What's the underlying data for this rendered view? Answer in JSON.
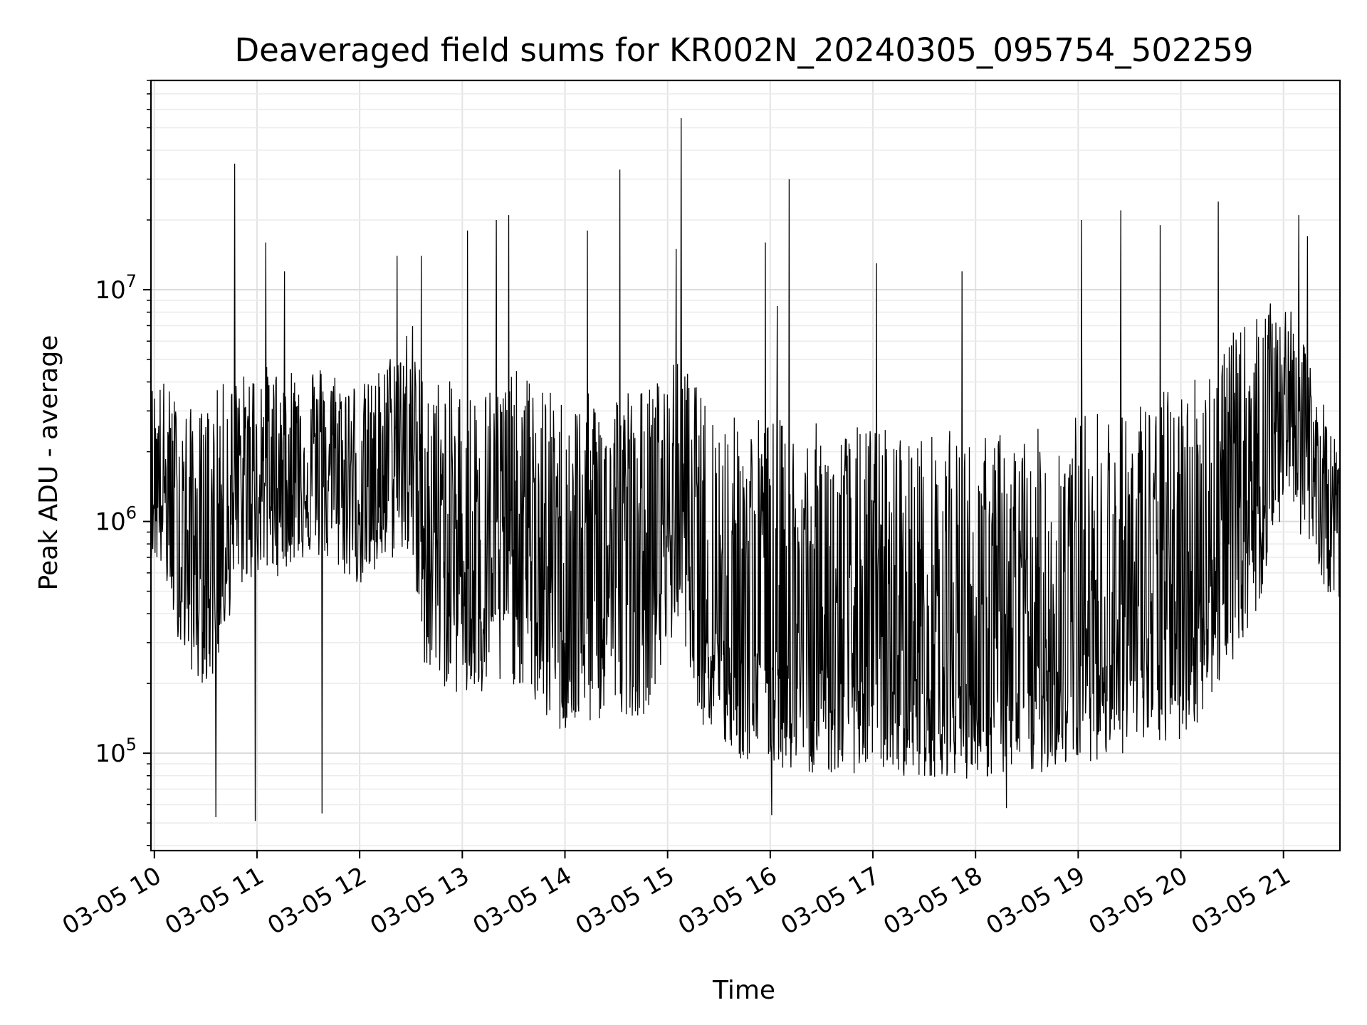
{
  "chart_data": {
    "type": "line",
    "title": "Deaveraged field sums for KR002N_20240305_095754_502259",
    "xlabel": "Time",
    "ylabel": "Peak ADU - average",
    "yscale": "log",
    "ylim": [
      38000,
      80000000
    ],
    "xlim": [
      "2024-03-05 09:58",
      "2024-03-05 21:33"
    ],
    "grid": true,
    "line_color": "#000000",
    "x_ticks": [
      {
        "label": "03-05 10",
        "time": "2024-03-05 10:00"
      },
      {
        "label": "03-05 11",
        "time": "2024-03-05 11:00"
      },
      {
        "label": "03-05 12",
        "time": "2024-03-05 12:00"
      },
      {
        "label": "03-05 13",
        "time": "2024-03-05 13:00"
      },
      {
        "label": "03-05 14",
        "time": "2024-03-05 14:00"
      },
      {
        "label": "03-05 15",
        "time": "2024-03-05 15:00"
      },
      {
        "label": "03-05 16",
        "time": "2024-03-05 16:00"
      },
      {
        "label": "03-05 17",
        "time": "2024-03-05 17:00"
      },
      {
        "label": "03-05 18",
        "time": "2024-03-05 18:00"
      },
      {
        "label": "03-05 19",
        "time": "2024-03-05 19:00"
      },
      {
        "label": "03-05 20",
        "time": "2024-03-05 20:00"
      },
      {
        "label": "03-05 21",
        "time": "2024-03-05 21:00"
      }
    ],
    "y_ticks": [
      {
        "base": "10",
        "exp": "5",
        "value": 100000
      },
      {
        "base": "10",
        "exp": "6",
        "value": 1000000
      },
      {
        "base": "10",
        "exp": "7",
        "value": 10000000
      }
    ],
    "series": [
      {
        "x": [
          "2024-03-05 09:58",
          "2024-03-05 10:05",
          "2024-03-05 10:12",
          "2024-03-05 10:18",
          "2024-03-05 10:26",
          "2024-03-05 10:34",
          "2024-03-05 10:40",
          "2024-03-05 10:48",
          "2024-03-05 10:55",
          "2024-03-05 11:03",
          "2024-03-05 11:12",
          "2024-03-05 11:20",
          "2024-03-05 11:30",
          "2024-03-05 11:38",
          "2024-03-05 11:48",
          "2024-03-05 11:55",
          "2024-03-05 12:05",
          "2024-03-05 12:15",
          "2024-03-05 12:22",
          "2024-03-05 12:30",
          "2024-03-05 12:36",
          "2024-03-05 12:45",
          "2024-03-05 12:55",
          "2024-03-05 13:05",
          "2024-03-05 13:15",
          "2024-03-05 13:22",
          "2024-03-05 13:32",
          "2024-03-05 13:45",
          "2024-03-05 13:55",
          "2024-03-05 14:05",
          "2024-03-05 14:15",
          "2024-03-05 14:25",
          "2024-03-05 14:32",
          "2024-03-05 14:45",
          "2024-03-05 14:55",
          "2024-03-05 15:05",
          "2024-03-05 15:10",
          "2024-03-05 15:20",
          "2024-03-05 15:35",
          "2024-03-05 15:45",
          "2024-03-05 15:55",
          "2024-03-05 16:05",
          "2024-03-05 16:15",
          "2024-03-05 16:25",
          "2024-03-05 16:40",
          "2024-03-05 16:50",
          "2024-03-05 17:05",
          "2024-03-05 17:15",
          "2024-03-05 17:30",
          "2024-03-05 17:45",
          "2024-03-05 18:00",
          "2024-03-05 18:15",
          "2024-03-05 18:30",
          "2024-03-05 18:45",
          "2024-03-05 19:00",
          "2024-03-05 19:15",
          "2024-03-05 19:30",
          "2024-03-05 19:45",
          "2024-03-05 20:00",
          "2024-03-05 20:15",
          "2024-03-05 20:30",
          "2024-03-05 20:45",
          "2024-03-05 20:55",
          "2024-03-05 21:05",
          "2024-03-05 21:15",
          "2024-03-05 21:25",
          "2024-03-05 21:33"
        ],
        "values": [
          1500000,
          1300000,
          900000,
          700000,
          600000,
          650000,
          900000,
          1200000,
          1400000,
          1500000,
          1450000,
          1600000,
          1700000,
          1650000,
          1500000,
          1400000,
          1300000,
          1600000,
          1800000,
          2000000,
          1000000,
          800000,
          700000,
          650000,
          700000,
          750000,
          800000,
          600000,
          500000,
          500000,
          550000,
          600000,
          650000,
          600000,
          800000,
          1200000,
          1100000,
          500000,
          350000,
          300000,
          320000,
          280000,
          250000,
          260000,
          240000,
          250000,
          260000,
          230000,
          220000,
          230000,
          200000,
          220000,
          210000,
          250000,
          280000,
          300000,
          320000,
          350000,
          400000,
          600000,
          900000,
          1500000,
          3000000,
          3500000,
          2000000,
          1200000,
          900000
        ],
        "envelope_high": [
          4000000,
          4200000,
          3500000,
          3200000,
          3000000,
          3500000,
          4000000,
          4200000,
          4500000,
          4800000,
          4600000,
          4800000,
          5000000,
          4800000,
          4500000,
          4200000,
          4000000,
          5000000,
          6000000,
          8000000,
          4500000,
          4200000,
          4000000,
          3800000,
          4000000,
          4200000,
          4500000,
          4000000,
          3500000,
          3500000,
          3600000,
          3800000,
          4000000,
          3800000,
          4200000,
          5000000,
          4800000,
          3500000,
          3000000,
          2800000,
          3000000,
          2800000,
          2600000,
          2700000,
          2500000,
          2600000,
          2700000,
          2500000,
          2400000,
          2500000,
          2300000,
          2500000,
          2400000,
          2700000,
          3000000,
          3200000,
          3400000,
          3600000,
          4000000,
          5000000,
          6500000,
          8000000,
          9000000,
          8000000,
          5000000,
          3000000,
          2000000
        ],
        "envelope_low": [
          700000,
          600000,
          350000,
          250000,
          200000,
          200000,
          300000,
          500000,
          550000,
          600000,
          580000,
          650000,
          700000,
          680000,
          600000,
          550000,
          500000,
          650000,
          700000,
          700000,
          250000,
          200000,
          180000,
          160000,
          170000,
          180000,
          200000,
          150000,
          120000,
          120000,
          130000,
          140000,
          150000,
          140000,
          200000,
          350000,
          300000,
          130000,
          100000,
          90000,
          95000,
          85000,
          80000,
          82000,
          80000,
          82000,
          85000,
          80000,
          78000,
          80000,
          76000,
          80000,
          78000,
          85000,
          90000,
          95000,
          100000,
          105000,
          110000,
          150000,
          250000,
          400000,
          900000,
          1100000,
          700000,
          500000,
          450000
        ],
        "spikes": [
          {
            "x": "2024-03-05 10:47",
            "value": 35000000
          },
          {
            "x": "2024-03-05 11:05",
            "value": 16000000
          },
          {
            "x": "2024-03-05 11:16",
            "value": 12000000
          },
          {
            "x": "2024-03-05 12:22",
            "value": 14000000
          },
          {
            "x": "2024-03-05 12:36",
            "value": 14000000
          },
          {
            "x": "2024-03-05 13:03",
            "value": 18000000
          },
          {
            "x": "2024-03-05 13:20",
            "value": 20000000
          },
          {
            "x": "2024-03-05 13:27",
            "value": 21000000
          },
          {
            "x": "2024-03-05 14:13",
            "value": 18000000
          },
          {
            "x": "2024-03-05 14:32",
            "value": 33000000
          },
          {
            "x": "2024-03-05 15:08",
            "value": 55000000
          },
          {
            "x": "2024-03-05 15:05",
            "value": 15000000
          },
          {
            "x": "2024-03-05 16:11",
            "value": 30000000
          },
          {
            "x": "2024-03-05 15:57",
            "value": 16000000
          },
          {
            "x": "2024-03-05 16:04",
            "value": 8500000
          },
          {
            "x": "2024-03-05 17:02",
            "value": 13000000
          },
          {
            "x": "2024-03-05 17:52",
            "value": 12000000
          },
          {
            "x": "2024-03-05 19:02",
            "value": 20000000
          },
          {
            "x": "2024-03-05 19:25",
            "value": 22000000
          },
          {
            "x": "2024-03-05 19:48",
            "value": 19000000
          },
          {
            "x": "2024-03-05 20:22",
            "value": 24000000
          },
          {
            "x": "2024-03-05 21:09",
            "value": 21000000
          },
          {
            "x": "2024-03-05 21:14",
            "value": 17000000
          },
          {
            "x": "2024-03-05 10:36",
            "value": 53000
          },
          {
            "x": "2024-03-05 10:59",
            "value": 51000
          },
          {
            "x": "2024-03-05 11:38",
            "value": 55000
          },
          {
            "x": "2024-03-05 16:01",
            "value": 54000
          },
          {
            "x": "2024-03-05 18:18",
            "value": 58000
          }
        ]
      }
    ]
  }
}
